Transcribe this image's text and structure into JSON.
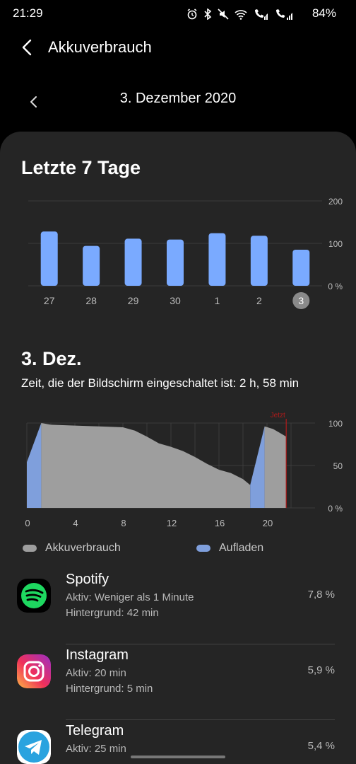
{
  "status_bar": {
    "time": "21:29",
    "battery": "84%",
    "icons": [
      "alarm-icon",
      "bluetooth-icon",
      "mute-icon",
      "wifi-icon",
      "wifi-call-icon",
      "signal-icon",
      "sim2-call-icon",
      "signal-icon"
    ]
  },
  "header": {
    "title": "Akkuverbrauch"
  },
  "date_nav": {
    "label": "3. Dezember 2020"
  },
  "weekly": {
    "title": "Letzte 7 Tage"
  },
  "daily": {
    "title": "3. Dez.",
    "screen_time": "Zeit, die der Bildschirm eingeschaltet ist: 2 h, 58 min"
  },
  "legend": {
    "usage": "Akkuverbrauch",
    "charging": "Aufladen"
  },
  "colors": {
    "bar": "#7aaaff",
    "usage_area": "#9e9e9e",
    "charge_area": "#7f9fdc",
    "now_line": "#b01a1a",
    "card_bg": "#252525"
  },
  "chart_data": [
    {
      "type": "bar",
      "title": "Letzte 7 Tage",
      "categories": [
        "27",
        "28",
        "29",
        "30",
        "1",
        "2",
        "3"
      ],
      "values": [
        128,
        94,
        111,
        109,
        124,
        118,
        85
      ],
      "selected": "3",
      "yticks": [
        "200",
        "100",
        "0 %"
      ],
      "ylim": [
        0,
        200
      ],
      "grid": true
    },
    {
      "type": "area",
      "title": "3. Dez.",
      "xticks": [
        "0",
        "4",
        "8",
        "12",
        "16",
        "20"
      ],
      "yticks": [
        "100",
        "50",
        "0 %"
      ],
      "xlim": [
        0,
        24
      ],
      "ylim": [
        0,
        100
      ],
      "now_label": "Jetzt",
      "now_hour": 21.6,
      "series": [
        {
          "name": "Aufladen",
          "x": [
            0,
            1.2
          ],
          "y": [
            54,
            100
          ]
        },
        {
          "name": "Akkuverbrauch",
          "x": [
            1.2,
            2,
            4,
            6,
            8,
            9,
            10,
            11,
            12,
            13,
            14,
            15,
            16,
            17,
            18,
            18.6
          ],
          "y": [
            100,
            98,
            97,
            96,
            95,
            91,
            84,
            76,
            72,
            67,
            60,
            52,
            45,
            41,
            34,
            27
          ]
        },
        {
          "name": "Aufladen",
          "x": [
            18.6,
            19.8
          ],
          "y": [
            27,
            96
          ]
        },
        {
          "name": "Akkuverbrauch",
          "x": [
            19.8,
            20.5,
            21,
            21.6
          ],
          "y": [
            96,
            93,
            89,
            84
          ]
        }
      ]
    }
  ],
  "apps": [
    {
      "name": "Spotify",
      "active": "Aktiv: Weniger als 1 Minute",
      "background": "Hintergrund: 42 min",
      "percent": "7,8 %",
      "icon": "spotify-icon"
    },
    {
      "name": "Instagram",
      "active": "Aktiv: 20 min",
      "background": "Hintergrund: 5 min",
      "percent": "5,9 %",
      "icon": "instagram-icon"
    },
    {
      "name": "Telegram",
      "active": "Aktiv: 25 min",
      "background": "",
      "percent": "5,4 %",
      "icon": "telegram-icon"
    }
  ]
}
